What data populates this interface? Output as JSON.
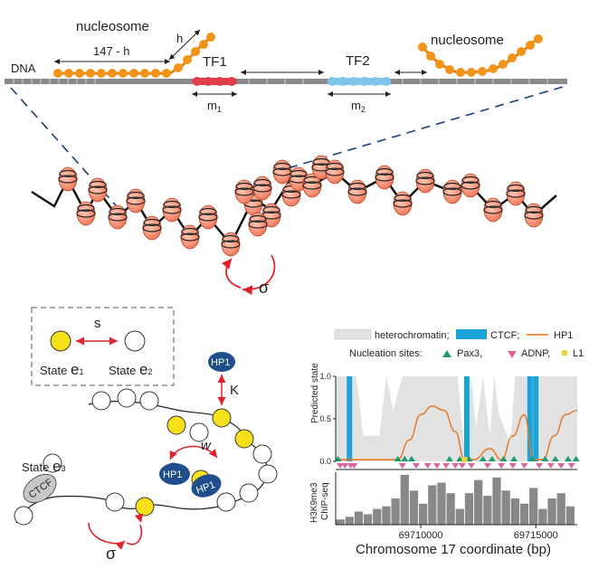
{
  "panel_a": {
    "dna_label": "DNA",
    "nucleosome_left": "nucleosome",
    "nucleosome_right": "nucleosome",
    "len_label": "147 - h",
    "h_label": "h",
    "tf1_label": "TF1",
    "tf2_label": "TF2",
    "m1_label": "m",
    "m1_sub": "1",
    "m2_label": "m",
    "m2_sub": "2"
  },
  "panel_b": {
    "sigma_label": "σ"
  },
  "panel_c": {
    "s_label": "s",
    "state_e1_prefix": "State ",
    "state_e1_symbol": "e",
    "state_e1_sub": "1",
    "state_e2_prefix": "State ",
    "state_e2_symbol": "e",
    "state_e2_sub": "2",
    "state_e3_prefix": "State ",
    "state_e3_symbol": "e",
    "state_e3_sub": "3",
    "hp1_label": "HP1",
    "k_label": "K",
    "w_label": "w",
    "ctcf_label": "CTCF",
    "sigma_label": "σ",
    "colors": {
      "state_e1": "#f7e11a",
      "state_e2": "#ffffff",
      "hp1": "#1f4e8c",
      "ctcf": "#c8c8c8",
      "arrow": "#e0212b"
    }
  },
  "panel_d": {
    "legend_heterochromatin": "heterochromatin;",
    "legend_ctcf": "CTCF;",
    "legend_hp1": "HP1",
    "nucleation_label": "Nucleation sites:",
    "legend_pax3": "Pax3,",
    "legend_adnp": "ADNP,",
    "legend_l1": "L1",
    "ylabel_top": "Predicted state",
    "ylabel_bottom_1": "H3K9me3",
    "ylabel_bottom_2": "ChIP-seq",
    "xlabel": "Chromosome 17 coordinate (bp)",
    "colors": {
      "heterochromatin": "#e2e2e2",
      "ctcf": "#1aa3d8",
      "hp1": "#e8731c",
      "pax3": "#1e9a6e",
      "adnp": "#d6679c",
      "l1": "#f2d23a",
      "chip": "#888888"
    }
  },
  "chart_data": {
    "type": "area",
    "xlabel": "Chromosome 17 coordinate (bp)",
    "ylabel": "Predicted state",
    "xlim": [
      69706300,
      69716800
    ],
    "ylim": [
      0,
      1.0
    ],
    "yticks": [
      "0.0",
      "0.5",
      "1.0"
    ],
    "xticks": [
      69710000,
      69715000
    ],
    "xtick_labels": [
      "69710000",
      "69715000"
    ],
    "series": [
      {
        "name": "HP1",
        "x": [
          69706300,
          69707000,
          69708000,
          69709000,
          69709500,
          69710000,
          69710500,
          69711000,
          69711500,
          69711900,
          69712300,
          69713000,
          69713500,
          69714000,
          69714500,
          69714900,
          69715300,
          69715800,
          69716300,
          69716800
        ],
        "values": [
          0.02,
          0.02,
          0.02,
          0.02,
          0.25,
          0.55,
          0.65,
          0.6,
          0.35,
          0.02,
          0.02,
          0.15,
          0.02,
          0.3,
          0.55,
          0.02,
          0.02,
          0.3,
          0.55,
          0.6
        ]
      },
      {
        "name": "heterochromatin",
        "x": [
          69706300,
          69707200,
          69707500,
          69708200,
          69708500,
          69708800,
          69709200,
          69711600,
          69711900,
          69712200,
          69712400,
          69712700,
          69713000,
          69713200,
          69713400,
          69713900,
          69714100,
          69716800
        ],
        "values": [
          1.0,
          1.0,
          0.3,
          0.3,
          1.0,
          0.6,
          1.0,
          1.0,
          0.1,
          1.0,
          0.4,
          1.0,
          0.3,
          1.0,
          0.55,
          0.2,
          1.0,
          1.0
        ]
      }
    ],
    "ctcf_sites": [
      69706900,
      69712000,
      69714750,
      69715000
    ],
    "nucleation_sites": {
      "Pax3": [
        69706400,
        69709000,
        69709300,
        69709600,
        69711250,
        69711700,
        69712100,
        69712700,
        69713100,
        69713600,
        69714050,
        69714850,
        69715400,
        69715850,
        69716400,
        69716750
      ],
      "ADNP": [
        69706500,
        69706700,
        69706950,
        69707100,
        69709200,
        69709800,
        69710300,
        69710700,
        69711100,
        69711500,
        69711800,
        69712200,
        69712900,
        69713500,
        69714000,
        69714500,
        69715150,
        69715650,
        69716100,
        69716550
      ],
      "L1": [
        69711900
      ]
    },
    "chip_seq": {
      "name": "H3K9me3 ChIP-seq",
      "x": [
        69706500,
        69706900,
        69707300,
        69707700,
        69708100,
        69708500,
        69708900,
        69709300,
        69709700,
        69710100,
        69710500,
        69710900,
        69711300,
        69711700,
        69712100,
        69712500,
        69712900,
        69713300,
        69713700,
        69714100,
        69714500,
        69714900,
        69715300,
        69715700,
        69716100,
        69716500
      ],
      "values": [
        0.1,
        0.15,
        0.25,
        0.2,
        0.3,
        0.35,
        0.5,
        0.95,
        0.65,
        0.4,
        0.75,
        0.8,
        0.6,
        0.3,
        0.6,
        0.85,
        0.55,
        0.9,
        0.65,
        0.5,
        0.4,
        0.7,
        0.3,
        0.5,
        0.6,
        0.35
      ]
    }
  }
}
